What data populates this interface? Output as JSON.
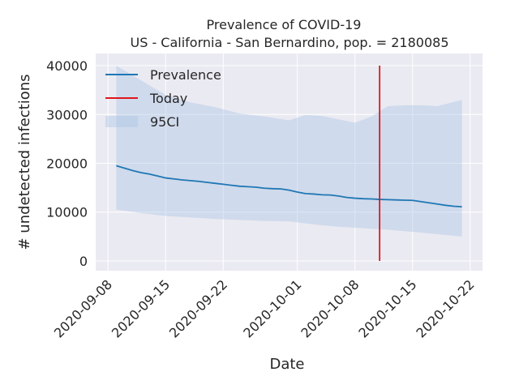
{
  "chart_data": {
    "type": "line",
    "title": "Prevalence of COVID-19",
    "subtitle": "US - California - San Bernardino, pop. = 2180085",
    "xlabel": "Date",
    "ylabel": "# undetected infections",
    "x_tick_labels": [
      "2020-09-08",
      "2020-09-15",
      "2020-09-22",
      "2020-10-01",
      "2020-10-08",
      "2020-10-15",
      "2020-10-22"
    ],
    "y_tick_labels": [
      "0",
      "10000",
      "20000",
      "30000",
      "40000"
    ],
    "xlim": [
      "2020-09-08",
      "2020-10-22"
    ],
    "ylim": [
      -2000,
      42500
    ],
    "grid": true,
    "legend_position": "top-left",
    "legend": {
      "line_label": "Prevalence",
      "today_label": "Today",
      "band_label": "95CI"
    },
    "today": "2020-10-11",
    "today_range": [
      0,
      40000
    ],
    "colors": {
      "line": "#1f77b4",
      "band": "#a7c3e3",
      "today": "#e0161c",
      "plot_background": "#eaeaf2",
      "grid": "#ffffff"
    },
    "series": [
      {
        "name": "Prevalence",
        "x": [
          "2020-09-09",
          "2020-09-10",
          "2020-09-11",
          "2020-09-12",
          "2020-09-13",
          "2020-09-14",
          "2020-09-15",
          "2020-09-16",
          "2020-09-17",
          "2020-09-18",
          "2020-09-19",
          "2020-09-20",
          "2020-09-21",
          "2020-09-22",
          "2020-09-23",
          "2020-09-24",
          "2020-09-25",
          "2020-09-26",
          "2020-09-27",
          "2020-09-28",
          "2020-09-29",
          "2020-09-30",
          "2020-10-01",
          "2020-10-02",
          "2020-10-03",
          "2020-10-04",
          "2020-10-05",
          "2020-10-06",
          "2020-10-07",
          "2020-10-08",
          "2020-10-09",
          "2020-10-10",
          "2020-10-11",
          "2020-10-12",
          "2020-10-13",
          "2020-10-14",
          "2020-10-15",
          "2020-10-16",
          "2020-10-17",
          "2020-10-18",
          "2020-10-19",
          "2020-10-20",
          "2020-10-21"
        ],
        "y": [
          19500,
          19000,
          18500,
          18100,
          17800,
          17400,
          17000,
          16800,
          16600,
          16450,
          16300,
          16100,
          15900,
          15700,
          15500,
          15300,
          15200,
          15100,
          14900,
          14800,
          14750,
          14500,
          14100,
          13800,
          13700,
          13550,
          13500,
          13300,
          13000,
          12850,
          12750,
          12700,
          12600,
          12550,
          12500,
          12450,
          12400,
          12150,
          11900,
          11650,
          11400,
          11200,
          11100
        ]
      },
      {
        "name": "95CI",
        "x": [
          "2020-09-09",
          "2020-09-12",
          "2020-09-15",
          "2020-09-18",
          "2020-09-21",
          "2020-09-24",
          "2020-09-27",
          "2020-09-30",
          "2020-10-02",
          "2020-10-04",
          "2020-10-06",
          "2020-10-08",
          "2020-10-10",
          "2020-10-12",
          "2020-10-14",
          "2020-10-16",
          "2020-10-18",
          "2020-10-21"
        ],
        "upper": [
          40000,
          37000,
          34000,
          32500,
          31500,
          30200,
          29600,
          28800,
          29900,
          29700,
          29000,
          28300,
          29600,
          31700,
          31900,
          31900,
          31700,
          33000
        ],
        "lower": [
          10500,
          9800,
          9200,
          8900,
          8600,
          8400,
          8200,
          8100,
          7700,
          7300,
          7000,
          6800,
          6600,
          6400,
          6100,
          5800,
          5500,
          5000
        ]
      }
    ]
  }
}
